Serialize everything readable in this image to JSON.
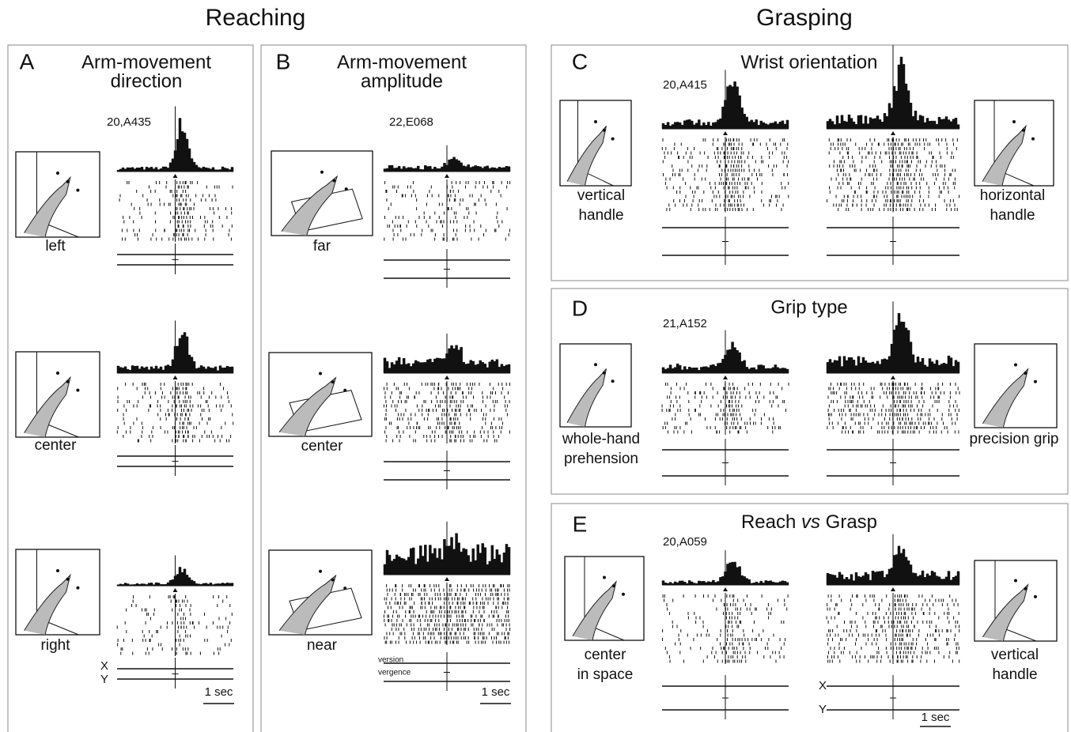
{
  "titles": {
    "reaching": "Reaching",
    "grasping": "Grasping"
  },
  "panels": [
    {
      "letter": "A",
      "title": [
        "Arm-movement",
        "direction"
      ],
      "cell": "20,A435",
      "conditions": [
        [
          "left"
        ],
        [
          "center"
        ],
        [
          "right"
        ]
      ],
      "axis_labels": [
        "X",
        "Y"
      ],
      "scale": "1 sec"
    },
    {
      "letter": "B",
      "title": [
        "Arm-movement",
        "amplitude"
      ],
      "cell": "22,E068",
      "conditions": [
        [
          "far"
        ],
        [
          "center"
        ],
        [
          "near"
        ]
      ],
      "trace_labels": [
        "version",
        "vergence"
      ],
      "scale": "1 sec"
    },
    {
      "letter": "C",
      "title": [
        "Wrist orientation"
      ],
      "cell": "20,A415",
      "conditions": [
        [
          "vertical",
          "handle"
        ],
        [
          "horizontal",
          "handle"
        ]
      ]
    },
    {
      "letter": "D",
      "title": [
        "Grip type"
      ],
      "cell": "21,A152",
      "conditions": [
        [
          "whole-hand",
          "prehension"
        ],
        [
          "precision grip"
        ]
      ]
    },
    {
      "letter": "E",
      "title_parts": [
        "Reach ",
        "vs",
        " Grasp"
      ],
      "cell": "20,A059",
      "conditions": [
        [
          "center",
          "in space"
        ],
        [
          "vertical",
          "handle"
        ]
      ],
      "axis_labels": [
        "X",
        "Y"
      ],
      "scale": "1 sec"
    }
  ]
}
